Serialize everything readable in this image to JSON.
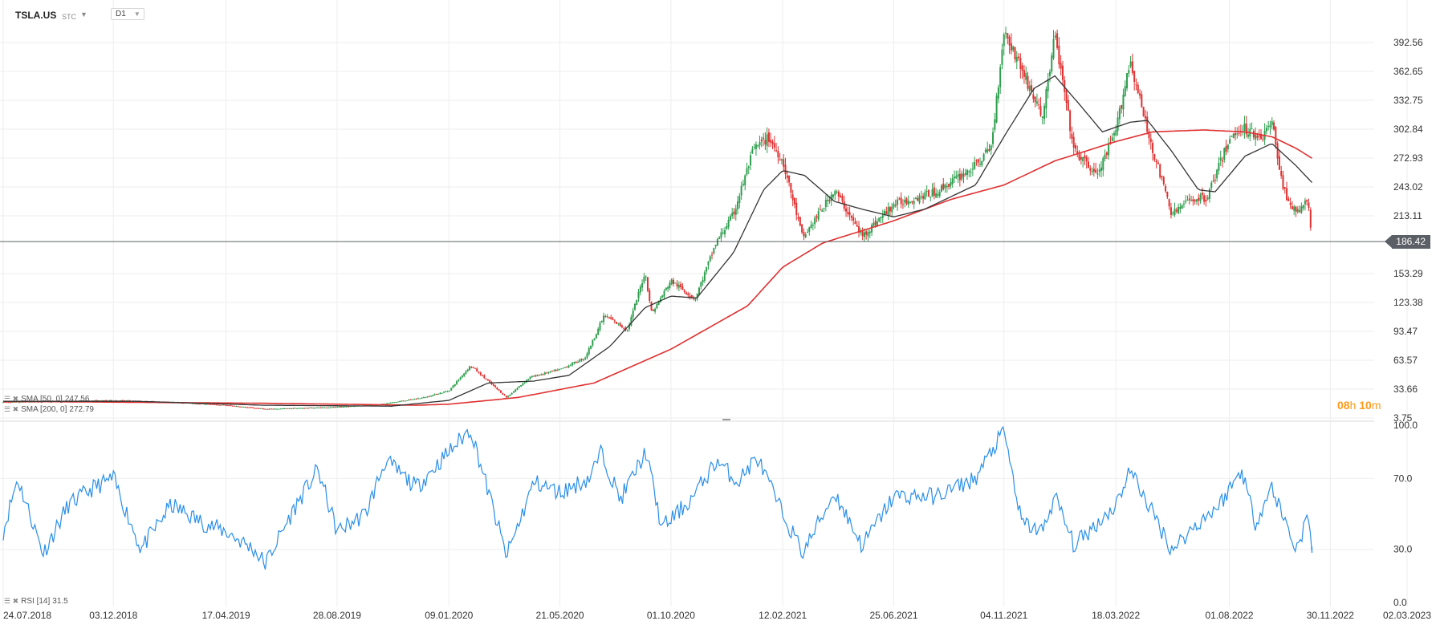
{
  "header": {
    "symbol": "TSLA.US",
    "instrument_type": "STC",
    "timeframe": "D1"
  },
  "indicators": {
    "sma50": {
      "label": "SMA [50, 0]",
      "value": "247.56",
      "color": "#333333"
    },
    "sma200": {
      "label": "SMA [200, 0]",
      "value": "272.79",
      "color": "#e03030"
    },
    "rsi": {
      "label": "RSI [14]",
      "value": "31.5",
      "color": "#2a8fe8"
    }
  },
  "current_price": {
    "label": "186.42",
    "value": 186.42
  },
  "countdown": {
    "hours": "08",
    "h": "h",
    "minutes": "10",
    "m": "m"
  },
  "colors": {
    "up": "#2e9e4e",
    "down": "#e03030",
    "sma50": "#333333",
    "sma200": "#e03030",
    "rsi": "#2a8fe8",
    "grid": "#eeeeee",
    "price_line": "#5a6066"
  },
  "chart_data": {
    "type": "candlestick",
    "price_axis": {
      "ticks": [
        "392.56",
        "362.65",
        "332.75",
        "302.84",
        "272.93",
        "243.02",
        "213.11",
        "153.29",
        "123.38",
        "93.47",
        "63.57",
        "33.66",
        "3.75"
      ],
      "range": [
        3.75,
        392.56
      ]
    },
    "rsi_axis": {
      "ticks": [
        "100.0",
        "70.0",
        "30.0",
        "0.0"
      ],
      "range": [
        0,
        100
      ]
    },
    "date_axis": [
      "24.07.2018",
      "03.12.2018",
      "17.04.2019",
      "28.08.2019",
      "09.01.2020",
      "21.05.2020",
      "01.10.2020",
      "12.02.2021",
      "25.06.2021",
      "04.11.2021",
      "18.03.2022",
      "01.08.2022",
      "30.11.2022",
      "02.03.2023"
    ],
    "price_path": [
      [
        "2018-07-24",
        20
      ],
      [
        "2018-10-01",
        21
      ],
      [
        "2018-12-03",
        22
      ],
      [
        "2019-02-15",
        20
      ],
      [
        "2019-04-17",
        17
      ],
      [
        "2019-06-03",
        13
      ],
      [
        "2019-08-28",
        15
      ],
      [
        "2019-10-20",
        18
      ],
      [
        "2019-12-10",
        25
      ],
      [
        "2020-01-09",
        32
      ],
      [
        "2020-02-04",
        58
      ],
      [
        "2020-03-18",
        25
      ],
      [
        "2020-04-15",
        46
      ],
      [
        "2020-05-21",
        54
      ],
      [
        "2020-06-20",
        66
      ],
      [
        "2020-07-13",
        110
      ],
      [
        "2020-08-10",
        95
      ],
      [
        "2020-08-31",
        155
      ],
      [
        "2020-09-08",
        112
      ],
      [
        "2020-10-01",
        146
      ],
      [
        "2020-10-30",
        127
      ],
      [
        "2020-11-24",
        185
      ],
      [
        "2020-12-15",
        215
      ],
      [
        "2021-01-08",
        282
      ],
      [
        "2021-01-26",
        294
      ],
      [
        "2021-02-12",
        270
      ],
      [
        "2021-03-08",
        190
      ],
      [
        "2021-04-15",
        240
      ],
      [
        "2021-05-18",
        192
      ],
      [
        "2021-06-25",
        225
      ],
      [
        "2021-08-15",
        238
      ],
      [
        "2021-10-01",
        265
      ],
      [
        "2021-10-20",
        285
      ],
      [
        "2021-11-04",
        405
      ],
      [
        "2021-11-23",
        370
      ],
      [
        "2021-12-20",
        315
      ],
      [
        "2022-01-04",
        400
      ],
      [
        "2022-01-27",
        280
      ],
      [
        "2022-02-24",
        255
      ],
      [
        "2022-03-18",
        300
      ],
      [
        "2022-04-04",
        375
      ],
      [
        "2022-04-25",
        300
      ],
      [
        "2022-05-24",
        215
      ],
      [
        "2022-06-15",
        230
      ],
      [
        "2022-07-05",
        232
      ],
      [
        "2022-08-01",
        292
      ],
      [
        "2022-08-16",
        305
      ],
      [
        "2022-09-09",
        295
      ],
      [
        "2022-09-21",
        310
      ],
      [
        "2022-10-05",
        240
      ],
      [
        "2022-10-20",
        215
      ],
      [
        "2022-11-03",
        230
      ],
      [
        "2022-11-08",
        186.42
      ]
    ],
    "sma50_path": [
      [
        "2018-07-24",
        21
      ],
      [
        "2019-01-01",
        21
      ],
      [
        "2019-06-01",
        17
      ],
      [
        "2019-11-01",
        16
      ],
      [
        "2020-01-09",
        22
      ],
      [
        "2020-02-25",
        40
      ],
      [
        "2020-04-20",
        42
      ],
      [
        "2020-06-01",
        48
      ],
      [
        "2020-07-20",
        78
      ],
      [
        "2020-08-31",
        118
      ],
      [
        "2020-10-01",
        130
      ],
      [
        "2020-11-01",
        128
      ],
      [
        "2020-12-15",
        175
      ],
      [
        "2021-01-20",
        240
      ],
      [
        "2021-02-12",
        260
      ],
      [
        "2021-03-10",
        255
      ],
      [
        "2021-04-15",
        228
      ],
      [
        "2021-05-18",
        220
      ],
      [
        "2021-06-25",
        212
      ],
      [
        "2021-08-01",
        220
      ],
      [
        "2021-10-01",
        245
      ],
      [
        "2021-11-04",
        295
      ],
      [
        "2021-12-10",
        345
      ],
      [
        "2022-01-04",
        358
      ],
      [
        "2022-02-01",
        330
      ],
      [
        "2022-03-02",
        300
      ],
      [
        "2022-04-04",
        310
      ],
      [
        "2022-04-25",
        312
      ],
      [
        "2022-05-24",
        280
      ],
      [
        "2022-06-25",
        240
      ],
      [
        "2022-07-15",
        238
      ],
      [
        "2022-08-20",
        275
      ],
      [
        "2022-09-21",
        288
      ],
      [
        "2022-10-20",
        265
      ],
      [
        "2022-11-08",
        247.56
      ]
    ],
    "sma200_path": [
      [
        "2018-07-24",
        21
      ],
      [
        "2019-06-01",
        19
      ],
      [
        "2019-12-01",
        17
      ],
      [
        "2020-01-09",
        18
      ],
      [
        "2020-04-01",
        25
      ],
      [
        "2020-07-01",
        40
      ],
      [
        "2020-10-01",
        75
      ],
      [
        "2021-01-01",
        120
      ],
      [
        "2021-02-12",
        160
      ],
      [
        "2021-04-01",
        185
      ],
      [
        "2021-06-25",
        208
      ],
      [
        "2021-09-01",
        230
      ],
      [
        "2021-11-04",
        245
      ],
      [
        "2022-01-04",
        270
      ],
      [
        "2022-03-18",
        290
      ],
      [
        "2022-05-01",
        300
      ],
      [
        "2022-07-01",
        302
      ],
      [
        "2022-08-20",
        300
      ],
      [
        "2022-09-21",
        295
      ],
      [
        "2022-10-20",
        283
      ],
      [
        "2022-11-08",
        272.79
      ]
    ],
    "rsi_path": [
      [
        "2018-07-24",
        40
      ],
      [
        "2018-08-10",
        70
      ],
      [
        "2018-09-10",
        28
      ],
      [
        "2018-10-10",
        55
      ],
      [
        "2018-11-10",
        65
      ],
      [
        "2018-12-03",
        70
      ],
      [
        "2019-01-05",
        30
      ],
      [
        "2019-02-10",
        55
      ],
      [
        "2019-03-20",
        45
      ],
      [
        "2019-04-17",
        40
      ],
      [
        "2019-05-20",
        30
      ],
      [
        "2019-06-03",
        22
      ],
      [
        "2019-07-10",
        55
      ],
      [
        "2019-08-05",
        75
      ],
      [
        "2019-08-28",
        40
      ],
      [
        "2019-10-01",
        50
      ],
      [
        "2019-10-25",
        80
      ],
      [
        "2019-12-01",
        65
      ],
      [
        "2020-01-09",
        85
      ],
      [
        "2020-02-04",
        98
      ],
      [
        "2020-03-18",
        26
      ],
      [
        "2020-04-20",
        68
      ],
      [
        "2020-05-21",
        62
      ],
      [
        "2020-06-25",
        70
      ],
      [
        "2020-07-10",
        85
      ],
      [
        "2020-08-01",
        58
      ],
      [
        "2020-09-01",
        85
      ],
      [
        "2020-09-20",
        42
      ],
      [
        "2020-10-25",
        58
      ],
      [
        "2020-11-25",
        80
      ],
      [
        "2020-12-20",
        68
      ],
      [
        "2021-01-12",
        82
      ],
      [
        "2021-02-12",
        50
      ],
      [
        "2021-03-08",
        28
      ],
      [
        "2021-04-15",
        62
      ],
      [
        "2021-05-18",
        32
      ],
      [
        "2021-06-25",
        60
      ],
      [
        "2021-08-15",
        60
      ],
      [
        "2021-10-01",
        70
      ],
      [
        "2021-11-04",
        97
      ],
      [
        "2021-11-25",
        45
      ],
      [
        "2021-12-20",
        40
      ],
      [
        "2022-01-04",
        60
      ],
      [
        "2022-01-27",
        32
      ],
      [
        "2022-03-18",
        55
      ],
      [
        "2022-04-04",
        75
      ],
      [
        "2022-05-24",
        30
      ],
      [
        "2022-06-25",
        45
      ],
      [
        "2022-07-20",
        55
      ],
      [
        "2022-08-16",
        75
      ],
      [
        "2022-09-01",
        45
      ],
      [
        "2022-09-21",
        65
      ],
      [
        "2022-10-20",
        30
      ],
      [
        "2022-11-03",
        48
      ],
      [
        "2022-11-08",
        31.5
      ]
    ]
  }
}
